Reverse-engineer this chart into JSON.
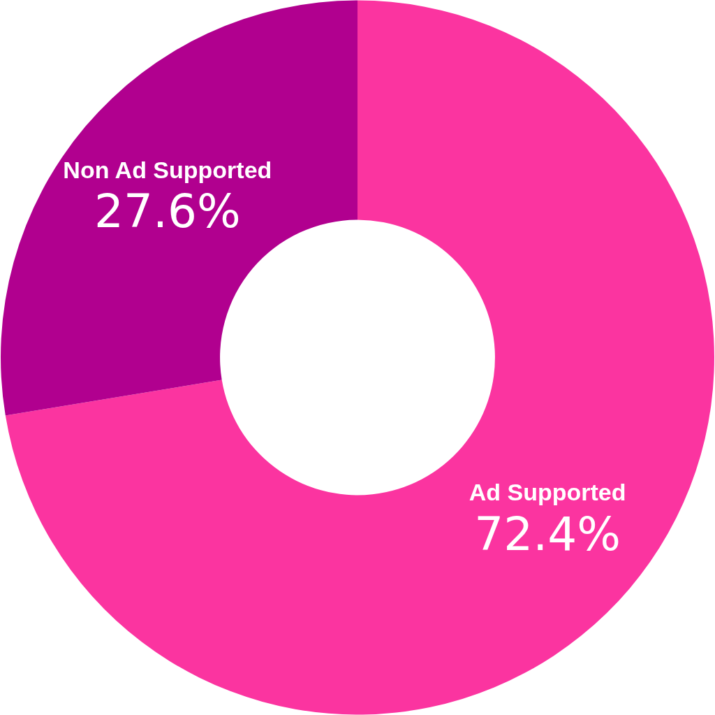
{
  "chart_data": {
    "type": "donut",
    "categories": [
      "Ad Supported",
      "Non Ad Supported"
    ],
    "values": [
      72.4,
      27.6
    ],
    "colors": [
      "#fb34a0",
      "#b1008f"
    ],
    "value_labels": [
      "72.4%",
      "27.6%"
    ]
  }
}
